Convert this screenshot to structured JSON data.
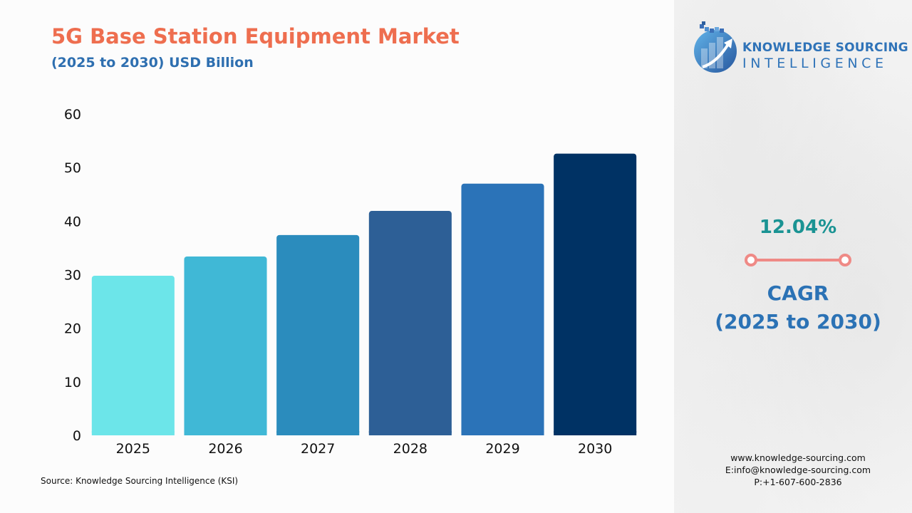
{
  "header": {
    "title": "5G Base Station Equipment Market",
    "subtitle": "(2025 to 2030) USD Billion"
  },
  "chart_data": {
    "type": "bar",
    "categories": [
      "2025",
      "2026",
      "2027",
      "2028",
      "2029",
      "2030"
    ],
    "values": [
      29.8,
      33.4,
      37.4,
      41.9,
      47.0,
      52.6
    ],
    "ylim": [
      0,
      60
    ],
    "yticks": [
      0,
      10,
      20,
      30,
      40,
      50,
      60
    ],
    "colors": [
      "#6ce5e9",
      "#40b8d6",
      "#2b8cbd",
      "#2d5f96",
      "#2b73b8",
      "#003264"
    ],
    "grid": false,
    "xlabel": "",
    "ylabel": ""
  },
  "source": "Source: Knowledge Sourcing Intelligence (KSI)",
  "logo": {
    "line1": "KNOWLEDGE SOURCING",
    "line2": "INTELLIGENCE",
    "icon": "bar-chart-arrow-globe-icon"
  },
  "cagr": {
    "value": "12.04%",
    "label_line1": "CAGR",
    "label_line2": "(2025 to 2030)",
    "connector_color": "#ef8a86"
  },
  "contact": {
    "website": "www.knowledge-sourcing.com",
    "email": "E:info@knowledge-sourcing.com",
    "phone": "P:+1-607-600-2836"
  }
}
